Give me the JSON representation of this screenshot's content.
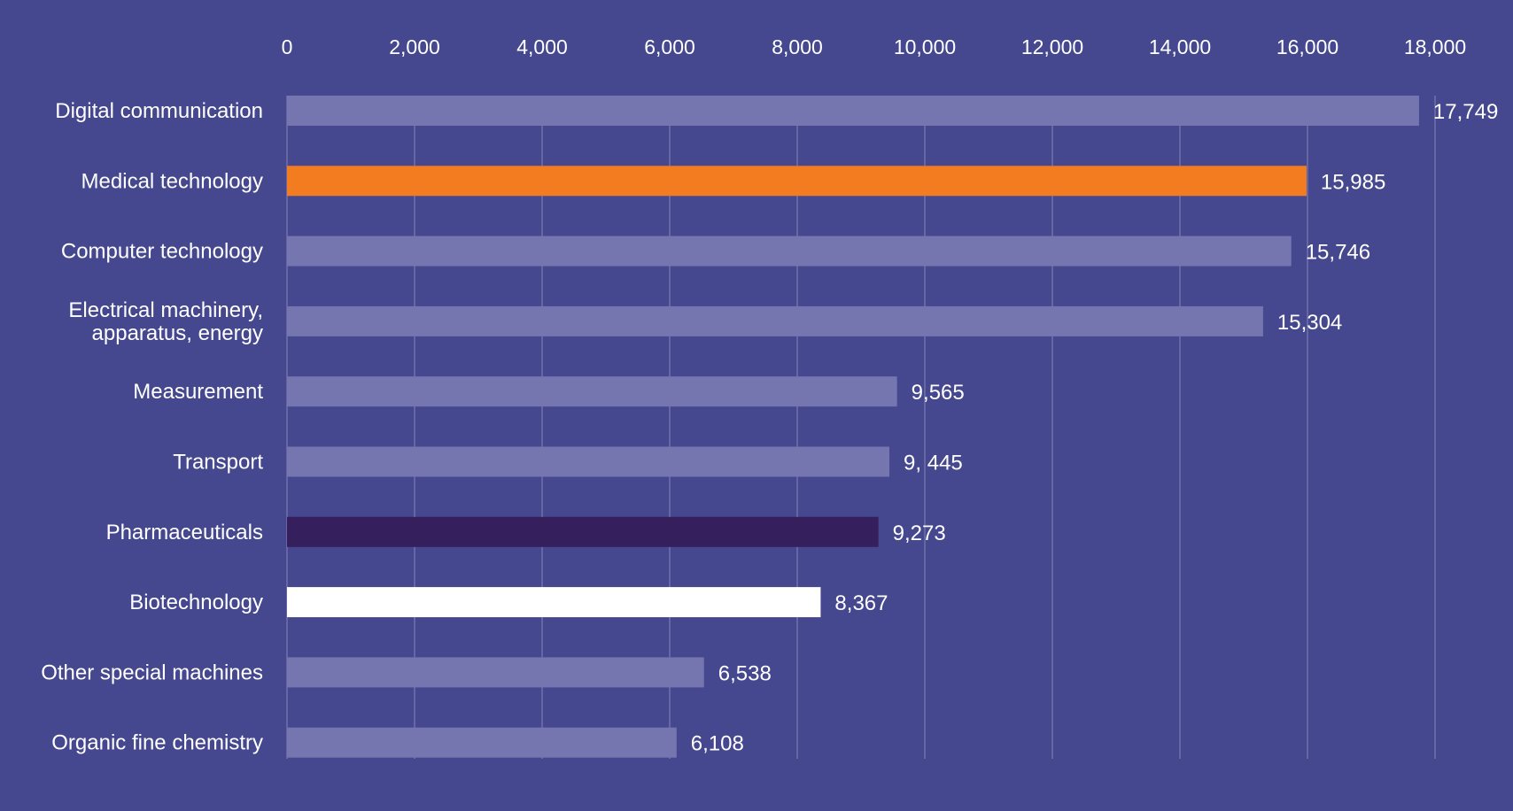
{
  "chart_data": {
    "type": "bar",
    "orientation": "horizontal",
    "title": "",
    "xlabel": "",
    "ylabel": "",
    "xlim": [
      0,
      18000
    ],
    "ticks": [
      0,
      2000,
      4000,
      6000,
      8000,
      10000,
      12000,
      14000,
      16000,
      18000
    ],
    "tick_labels": [
      "0",
      "2,000",
      "4,000",
      "6,000",
      "8,000",
      "10,000",
      "12,000",
      "14,000",
      "16,000",
      "18,000"
    ],
    "grid": true,
    "bars": [
      {
        "category": [
          "Digital communication"
        ],
        "value": 17749,
        "label": "17,749",
        "color": "#7576b0"
      },
      {
        "category": [
          "Medical technology"
        ],
        "value": 15985,
        "label": "15,985",
        "color": "#f47c20"
      },
      {
        "category": [
          "Computer technology"
        ],
        "value": 15746,
        "label": "15,746",
        "color": "#7576b0"
      },
      {
        "category": [
          "Electrical machinery,",
          "apparatus, energy"
        ],
        "value": 15304,
        "label": "15,304",
        "color": "#7576b0"
      },
      {
        "category": [
          "Measurement"
        ],
        "value": 9565,
        "label": "9,565",
        "color": "#7576b0"
      },
      {
        "category": [
          "Transport"
        ],
        "value": 9445,
        "label": "9, 445",
        "color": "#7576b0"
      },
      {
        "category": [
          "Pharmaceuticals"
        ],
        "value": 9273,
        "label": "9,273",
        "color": "#351f5c"
      },
      {
        "category": [
          "Biotechnology"
        ],
        "value": 8367,
        "label": "8,367",
        "color": "#ffffff"
      },
      {
        "category": [
          "Other special machines"
        ],
        "value": 6538,
        "label": "6,538",
        "color": "#7576b0"
      },
      {
        "category": [
          "Organic fine chemistry"
        ],
        "value": 6108,
        "label": "6,108",
        "color": "#7576b0"
      }
    ]
  }
}
